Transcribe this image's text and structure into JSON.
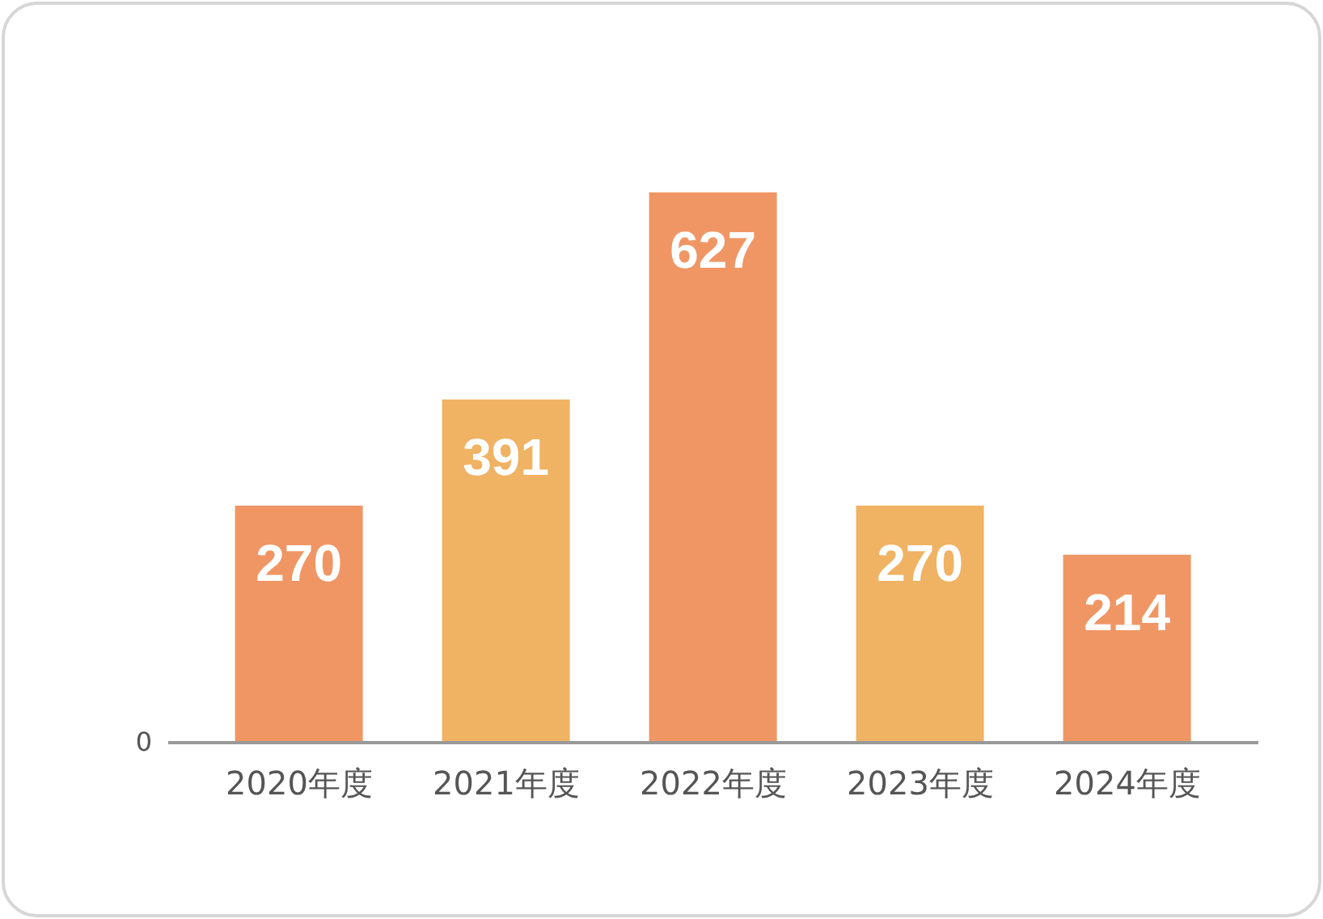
{
  "chart_data": {
    "type": "bar",
    "categories": [
      "2020年度",
      "2021年度",
      "2022年度",
      "2023年度",
      "2024年度"
    ],
    "values": [
      270,
      391,
      627,
      270,
      214
    ],
    "colors": [
      "#f09665",
      "#f0b263",
      "#f09665",
      "#f0b263",
      "#f09665"
    ],
    "annotations": [
      "0"
    ],
    "data_labels": true
  }
}
